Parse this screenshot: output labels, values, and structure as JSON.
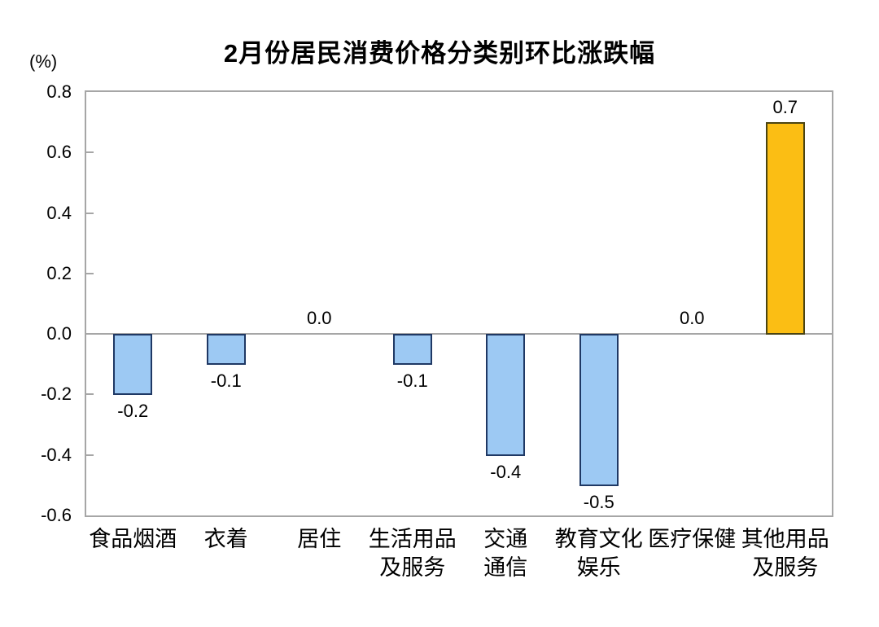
{
  "chart_data": {
    "type": "bar",
    "title": "2月份居民消费价格分类别环比涨跌幅",
    "unit_label": "(%)",
    "xlabel": "",
    "ylabel": "",
    "ylim": [
      -0.6,
      0.8
    ],
    "ytick_labels": [
      "0.8",
      "0.6",
      "0.4",
      "0.2",
      "0.0",
      "-0.2",
      "-0.4",
      "-0.6"
    ],
    "grid": false,
    "legend_position": "none",
    "categories": [
      "食品烟酒",
      "衣着",
      "居住",
      "生活用品及服务",
      "交通通信",
      "教育文化娱乐",
      "医疗保健",
      "其他用品及服务"
    ],
    "category_label_lines": [
      [
        "食品烟酒"
      ],
      [
        "衣着"
      ],
      [
        "居住"
      ],
      [
        "生活用品",
        "及服务"
      ],
      [
        "交通",
        "通信"
      ],
      [
        "教育文化",
        "娱乐"
      ],
      [
        "医疗保健"
      ],
      [
        "其他用品",
        "及服务"
      ]
    ],
    "values": [
      -0.2,
      -0.1,
      0.0,
      -0.1,
      -0.4,
      -0.5,
      0.0,
      0.7
    ],
    "value_labels": [
      "-0.2",
      "-0.1",
      "0.0",
      "-0.1",
      "-0.4",
      "-0.5",
      "0.0",
      "0.7"
    ],
    "highlight_index": 7,
    "colors": {
      "bar_fill": "#9dc9f3",
      "bar_border": "#1f3864",
      "highlight_fill": "#fbbe14",
      "highlight_border": "#4a4412",
      "axis": "#a6a6a6",
      "text": "#000000"
    }
  }
}
